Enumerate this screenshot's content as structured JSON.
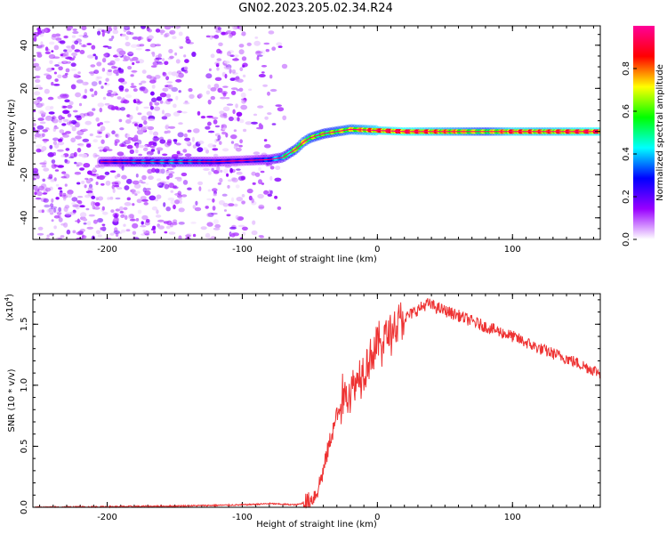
{
  "title": "GN02.2023.205.02.34.R24",
  "chart_data": [
    {
      "type": "heatmap",
      "xlabel": "Height of straight line (km)",
      "ylabel": "Frequency (Hz)",
      "xlim": [
        -255,
        165
      ],
      "ylim": [
        -50,
        49
      ],
      "xticks": [
        -200,
        -100,
        0,
        100
      ],
      "yticks": [
        -40,
        -20,
        0,
        20,
        40
      ],
      "colorbar": {
        "label": "Normalized spectral amplitude",
        "range": [
          0,
          1
        ],
        "ticks": [
          0.0,
          0.2,
          0.4,
          0.6,
          0.8
        ],
        "colors": [
          "#ffffff",
          "#9900ff",
          "#0000ff",
          "#00ffff",
          "#00ff00",
          "#ffff00",
          "#ff0000",
          "#ff0099"
        ]
      },
      "ridge": {
        "x": [
          -200,
          -180,
          -150,
          -120,
          -100,
          -80,
          -70,
          -60,
          -55,
          -50,
          -40,
          -30,
          -20,
          0,
          20,
          60,
          80,
          100,
          120,
          165
        ],
        "y": [
          -14,
          -14,
          -14,
          -14,
          -13.5,
          -13,
          -12,
          -8,
          -5,
          -3,
          -1,
          0,
          1,
          0.5,
          0,
          0,
          0,
          0,
          0,
          0
        ],
        "amplitude": [
          0.25,
          0.35,
          0.4,
          0.3,
          0.25,
          0.35,
          0.5,
          0.7,
          0.75,
          0.7,
          0.65,
          0.7,
          0.75,
          0.9,
          0.95,
          0.8,
          0.7,
          0.9,
          0.85,
          0.95
        ]
      }
    },
    {
      "type": "line",
      "xlabel": "Height of straight line (km)",
      "ylabel": "SNR (10 * v/v)",
      "yscale_label": "(x10",
      "yscale_exp": "4",
      "yscale_close": ")",
      "xlim": [
        -255,
        165
      ],
      "ylim": [
        0,
        1.75
      ],
      "xticks": [
        -200,
        -100,
        0,
        100
      ],
      "yticks": [
        0.0,
        0.5,
        1.0,
        1.5
      ],
      "color": "#ee3333",
      "series": [
        {
          "x": [
            -255,
            -200,
            -150,
            -100,
            -80,
            -60,
            -50,
            -45,
            -40,
            -35,
            -30,
            -25,
            -20,
            -15,
            -10,
            -5,
            0,
            10,
            20,
            30,
            37,
            45,
            60,
            80,
            100,
            120,
            140,
            165
          ],
          "y": [
            0.0,
            0.005,
            0.01,
            0.02,
            0.03,
            0.02,
            0.05,
            0.12,
            0.3,
            0.55,
            0.75,
            0.9,
            0.95,
            1.05,
            1.15,
            1.25,
            1.32,
            1.45,
            1.55,
            1.62,
            1.67,
            1.63,
            1.57,
            1.48,
            1.4,
            1.3,
            1.22,
            1.1
          ]
        }
      ]
    }
  ]
}
